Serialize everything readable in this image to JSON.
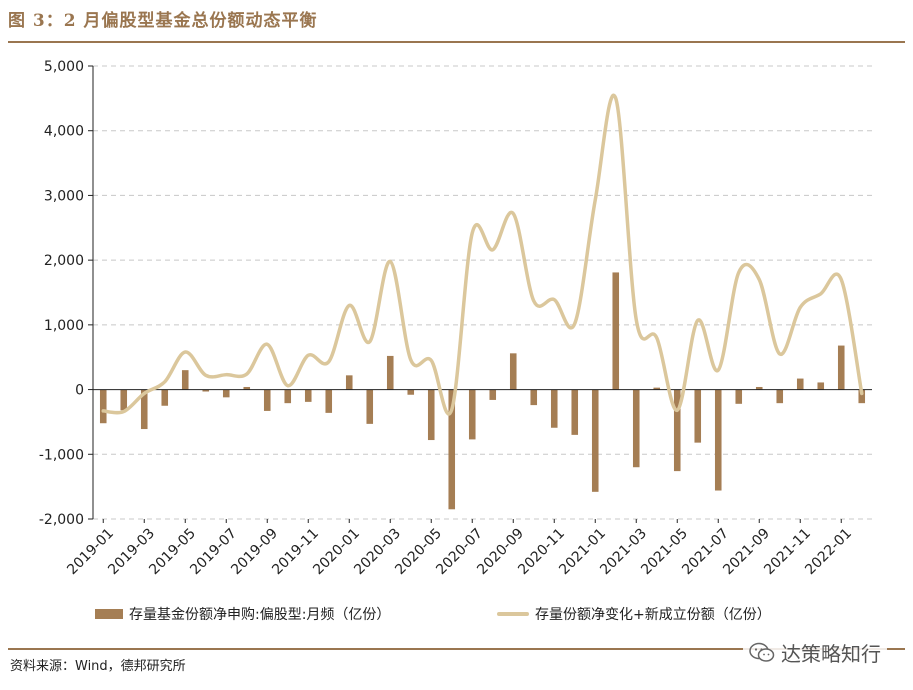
{
  "title": "图 3：2 月偏股型基金总份额动态平衡",
  "source": "资料来源：Wind，德邦研究所",
  "watermark": "达策略知行",
  "colors": {
    "bar": "#a57e54",
    "line": "#dbc79c",
    "accent": "#9a7650",
    "grid": "#c8c8c8"
  },
  "chart_data": {
    "type": "bar+line",
    "categories": [
      "2019-01",
      "2019-02",
      "2019-03",
      "2019-04",
      "2019-05",
      "2019-06",
      "2019-07",
      "2019-08",
      "2019-09",
      "2019-10",
      "2019-11",
      "2019-12",
      "2020-01",
      "2020-02",
      "2020-03",
      "2020-04",
      "2020-05",
      "2020-06",
      "2020-07",
      "2020-08",
      "2020-09",
      "2020-10",
      "2020-11",
      "2020-12",
      "2021-01",
      "2021-02",
      "2021-03",
      "2021-04",
      "2021-05",
      "2021-06",
      "2021-07",
      "2021-08",
      "2021-09",
      "2021-10",
      "2021-11",
      "2021-12",
      "2022-01",
      "2022-02"
    ],
    "x_tick_labels": [
      "2019-01",
      "2019-03",
      "2019-05",
      "2019-07",
      "2019-09",
      "2019-11",
      "2020-01",
      "2020-03",
      "2020-05",
      "2020-07",
      "2020-09",
      "2020-11",
      "2021-01",
      "2021-03",
      "2021-05",
      "2021-07",
      "2021-09",
      "2021-11",
      "2022-01"
    ],
    "y_tick_labels": [
      "5,000",
      "4,000",
      "3,000",
      "2,000",
      "1,000",
      "0",
      "-1,000",
      "-2,000"
    ],
    "ylim": [
      -2000,
      5000
    ],
    "grid": true,
    "legend_position": "bottom",
    "series": [
      {
        "name": "存量基金份额净申购:偏股型:月频（亿份）",
        "type": "bar",
        "values": [
          -520,
          -320,
          -610,
          -250,
          300,
          -30,
          -120,
          40,
          -330,
          -210,
          -190,
          -360,
          220,
          -530,
          520,
          -80,
          -780,
          -1850,
          -770,
          -160,
          560,
          -240,
          -590,
          -700,
          -1580,
          1810,
          -1200,
          30,
          -1260,
          -820,
          -1560,
          -220,
          40,
          -210,
          170,
          110,
          680,
          -210
        ]
      },
      {
        "name": "存量份额净变化+新成立份额（亿份）",
        "type": "line",
        "values": [
          -330,
          -340,
          -60,
          120,
          580,
          220,
          230,
          240,
          700,
          60,
          530,
          430,
          1300,
          740,
          1980,
          460,
          450,
          -310,
          2420,
          2160,
          2720,
          1370,
          1390,
          1020,
          2930,
          4500,
          1080,
          800,
          -320,
          1070,
          300,
          1810,
          1700,
          550,
          1270,
          1480,
          1700,
          -60
        ]
      }
    ]
  }
}
